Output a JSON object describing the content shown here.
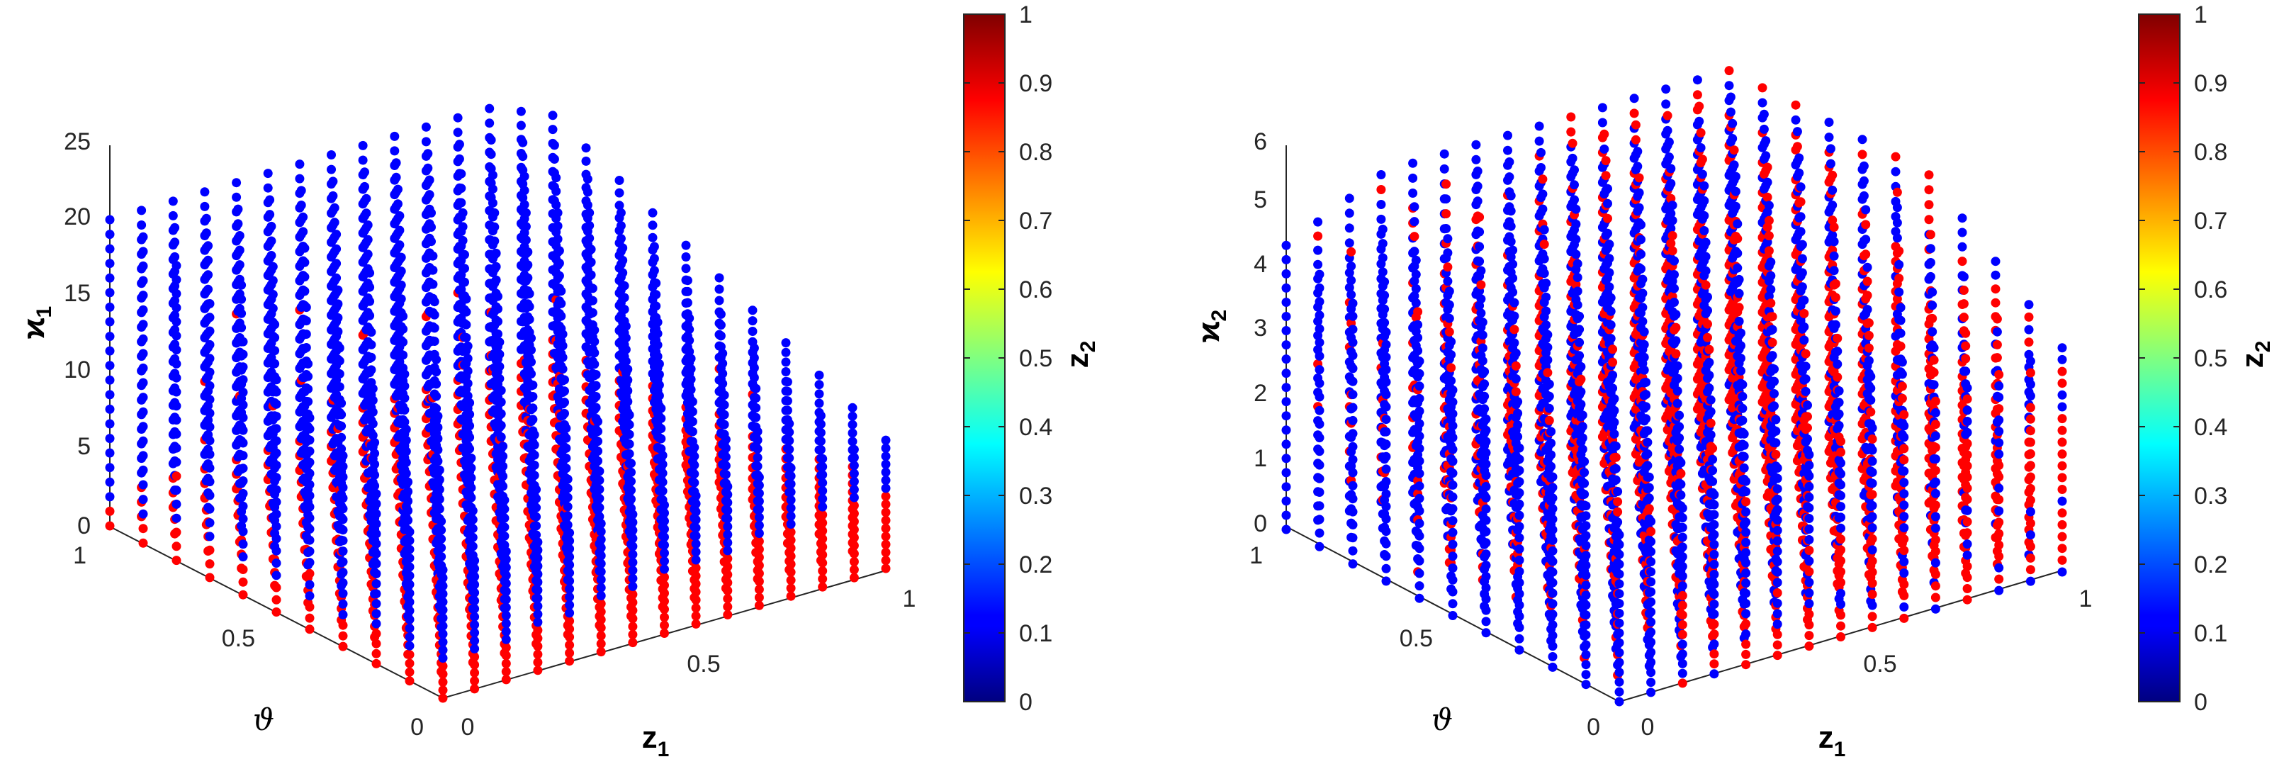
{
  "chart_data": [
    {
      "type": "scatter3d",
      "panel": "left",
      "x_axis": {
        "label": "z",
        "label_sub": "1",
        "ticks": [
          "0",
          "0.5",
          "1"
        ],
        "range": [
          0,
          1
        ]
      },
      "y_axis": {
        "label": "ϑ",
        "ticks": [
          "0",
          "0.5",
          "1"
        ],
        "range": [
          0,
          1
        ]
      },
      "z_axis": {
        "label": "ϰ",
        "label_sub": "1",
        "ticks": [
          "0",
          "5",
          "10",
          "15",
          "20",
          "25"
        ],
        "range": [
          0,
          25
        ]
      },
      "color_axis": {
        "label": "z",
        "label_sub": "2",
        "ticks": [
          "0",
          "0.1",
          "0.2",
          "0.3",
          "0.4",
          "0.5",
          "0.6",
          "0.7",
          "0.8",
          "0.9",
          "1"
        ],
        "range": [
          0,
          1
        ],
        "colormap": "jet"
      },
      "grid": {
        "z1_levels": 15,
        "theta_levels": 11,
        "points_per_column": 18
      },
      "point_colors": {
        "z2_low": "#0000ff",
        "z2_high": "#ff0000"
      },
      "description": "Columns of points over a grid of (z1, ϑ); column top ϰ1 grows with z1 and ϑ up to about 20; lower part of columns red (z2=1), upper part blue (z2=0)"
    },
    {
      "type": "scatter3d",
      "panel": "right",
      "x_axis": {
        "label": "z",
        "label_sub": "1",
        "ticks": [
          "0",
          "0.5",
          "1"
        ],
        "range": [
          0,
          1
        ]
      },
      "y_axis": {
        "label": "ϑ",
        "ticks": [
          "0",
          "0.5",
          "1"
        ],
        "range": [
          0,
          1
        ]
      },
      "z_axis": {
        "label": "ϰ",
        "label_sub": "2",
        "ticks": [
          "0",
          "1",
          "2",
          "3",
          "4",
          "5",
          "6"
        ],
        "range": [
          0,
          6
        ]
      },
      "color_axis": {
        "label": "z",
        "label_sub": "2",
        "ticks": [
          "0",
          "0.1",
          "0.2",
          "0.3",
          "0.4",
          "0.5",
          "0.6",
          "0.7",
          "0.8",
          "0.9",
          "1"
        ],
        "range": [
          0,
          1
        ],
        "colormap": "jet"
      },
      "grid": {
        "z1_levels": 15,
        "theta_levels": 11,
        "points_per_column": 18
      },
      "point_colors": {
        "z2_low": "#0000ff",
        "z2_high": "#ff0000"
      },
      "description": "Columns of points over a grid of (z1, ϑ); column top ϰ2 grows with z1 and ϑ up to about 6; red and blue points intermixed, red dominant near middle"
    }
  ]
}
